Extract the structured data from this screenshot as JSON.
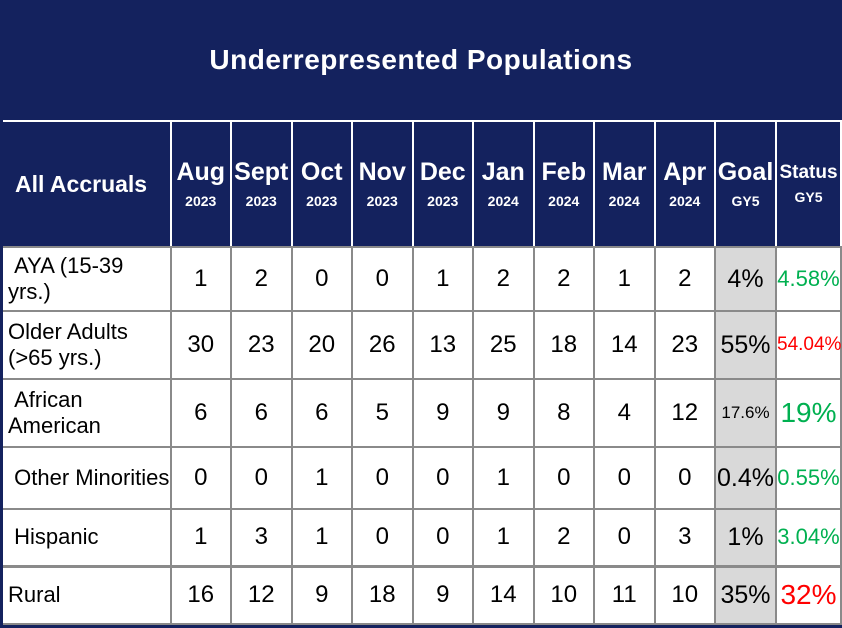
{
  "title": "Underrepresented Populations",
  "colors": {
    "navy": "#14225e",
    "green": "#00b050",
    "red": "#ff0000",
    "goal_bg": "#d9d9d9",
    "grid": "#8a8a8a"
  },
  "table": {
    "row_header": "All Accruals",
    "columns": [
      {
        "month": "Aug",
        "year": "2023"
      },
      {
        "month": "Sept",
        "year": "2023"
      },
      {
        "month": "Oct",
        "year": "2023"
      },
      {
        "month": "Nov",
        "year": "2023"
      },
      {
        "month": "Dec",
        "year": "2023"
      },
      {
        "month": "Jan",
        "year": "2024"
      },
      {
        "month": "Feb",
        "year": "2024"
      },
      {
        "month": "Mar",
        "year": "2024"
      },
      {
        "month": "Apr",
        "year": "2024"
      },
      {
        "month": "Goal",
        "year": "GY5"
      },
      {
        "month": "Status",
        "year": "GY5"
      }
    ],
    "rows": [
      {
        "label": " AYA (15-39 yrs.)",
        "values": [
          "1",
          "2",
          "0",
          "0",
          "1",
          "2",
          "2",
          "1",
          "2"
        ],
        "goal": "4%",
        "status": "4.58%",
        "status_color": "green"
      },
      {
        "label": "Older Adults (>65 yrs.)",
        "values": [
          "30",
          "23",
          "20",
          "26",
          "13",
          "25",
          "18",
          "14",
          "23"
        ],
        "goal": "55%",
        "status": "54.04%",
        "status_color": "red"
      },
      {
        "label": " African American",
        "values": [
          "6",
          "6",
          "6",
          "5",
          "9",
          "9",
          "8",
          "4",
          "12"
        ],
        "goal": "17.6%",
        "status": "19%",
        "status_color": "green"
      },
      {
        "label": " Other Minorities",
        "values": [
          "0",
          "0",
          "1",
          "0",
          "0",
          "1",
          "0",
          "0",
          "0"
        ],
        "goal": "0.4%",
        "status": "0.55%",
        "status_color": "green"
      },
      {
        "label": " Hispanic",
        "values": [
          "1",
          "3",
          "1",
          "0",
          "0",
          "1",
          "2",
          "0",
          "3"
        ],
        "goal": "1%",
        "status": "3.04%",
        "status_color": "green"
      },
      {
        "label": "Rural",
        "values": [
          "16",
          "12",
          "9",
          "18",
          "9",
          "14",
          "10",
          "11",
          "10"
        ],
        "goal": "35%",
        "status": "32%",
        "status_color": "red"
      }
    ]
  }
}
